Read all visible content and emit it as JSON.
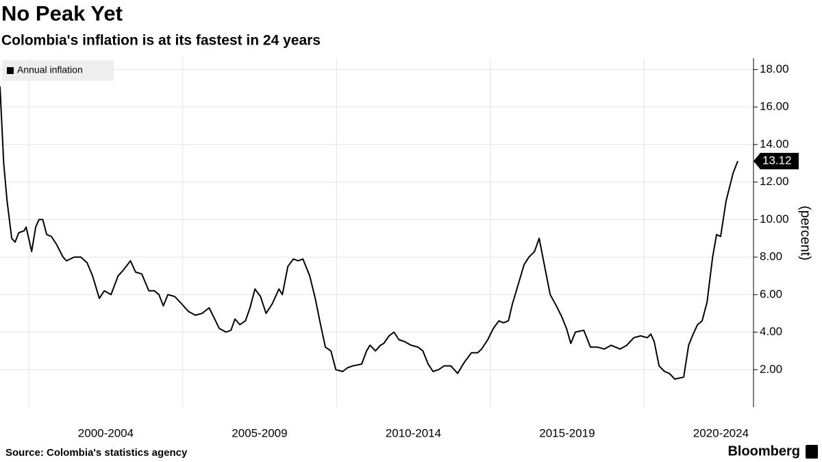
{
  "chart_data": {
    "type": "line",
    "title": "No Peak Yet",
    "subtitle": "Colombia's inflation is at its fastest in 24 years",
    "y_axis_label": "(percent)",
    "source": "Source: Colombia's statistics agency",
    "brand": "Bloomberg",
    "legend": "top-left",
    "grid": true,
    "x": [
      1999.06,
      1999.18,
      1999.29,
      1999.44,
      1999.55,
      1999.67,
      1999.84,
      1999.91,
      2000.09,
      2000.22,
      2000.33,
      2000.45,
      2000.58,
      2000.73,
      2000.89,
      2001.11,
      2001.22,
      2001.47,
      2001.69,
      2001.89,
      2002.07,
      2002.29,
      2002.45,
      2002.67,
      2002.9,
      2003.07,
      2003.3,
      2003.47,
      2003.67,
      2003.9,
      2004.08,
      2004.23,
      2004.37,
      2004.52,
      2004.74,
      2004.97,
      2005.19,
      2005.41,
      2005.63,
      2005.86,
      2006.01,
      2006.19,
      2006.41,
      2006.57,
      2006.7,
      2006.86,
      2007.04,
      2007.19,
      2007.35,
      2007.53,
      2007.71,
      2007.91,
      2008.13,
      2008.24,
      2008.42,
      2008.6,
      2008.75,
      2008.91,
      2009.13,
      2009.31,
      2009.47,
      2009.64,
      2009.82,
      2009.98,
      2010.2,
      2010.36,
      2010.53,
      2010.82,
      2010.98,
      2011.09,
      2011.27,
      2011.43,
      2011.54,
      2011.71,
      2011.87,
      2012.03,
      2012.21,
      2012.43,
      2012.65,
      2012.81,
      2012.98,
      2013.14,
      2013.32,
      2013.5,
      2013.72,
      2013.94,
      2014.16,
      2014.39,
      2014.59,
      2014.72,
      2014.92,
      2015.1,
      2015.28,
      2015.43,
      2015.59,
      2015.72,
      2015.92,
      2016.1,
      2016.26,
      2016.44,
      2016.59,
      2016.77,
      2016.95,
      2017.15,
      2017.33,
      2017.48,
      2017.62,
      2017.77,
      2018.04,
      2018.26,
      2018.49,
      2018.71,
      2018.93,
      2019.22,
      2019.44,
      2019.67,
      2019.89,
      2020.11,
      2020.22,
      2020.33,
      2020.49,
      2020.67,
      2020.82,
      2021.0,
      2021.29,
      2021.45,
      2021.6,
      2021.74,
      2021.89,
      2022.05,
      2022.23,
      2022.36,
      2022.49,
      2022.67,
      2022.9,
      2023.05
    ],
    "series": [
      {
        "name": "Annual inflation",
        "color": "#000000",
        "values": [
          17.1,
          13,
          11,
          9.0,
          8.8,
          9.3,
          9.4,
          9.6,
          8.3,
          9.6,
          10.0,
          10.0,
          9.2,
          9.1,
          8.7,
          8.0,
          7.8,
          8.0,
          8.0,
          7.7,
          7.0,
          5.8,
          6.2,
          6.0,
          7.0,
          7.3,
          7.8,
          7.2,
          7.1,
          6.2,
          6.2,
          6.0,
          5.4,
          6.0,
          5.9,
          5.5,
          5.1,
          4.9,
          5.0,
          5.3,
          4.8,
          4.2,
          4.0,
          4.1,
          4.7,
          4.4,
          4.6,
          5.3,
          6.3,
          5.9,
          5.0,
          5.5,
          6.3,
          6.0,
          7.5,
          7.9,
          7.8,
          7.9,
          7.0,
          5.8,
          4.5,
          3.2,
          3.0,
          2.0,
          1.9,
          2.1,
          2.2,
          2.3,
          3.0,
          3.3,
          3.0,
          3.3,
          3.4,
          3.8,
          4.0,
          3.6,
          3.5,
          3.3,
          3.2,
          3.0,
          2.3,
          1.9,
          2.0,
          2.2,
          2.2,
          1.8,
          2.4,
          2.9,
          2.9,
          3.1,
          3.6,
          4.2,
          4.6,
          4.5,
          4.6,
          5.5,
          6.6,
          7.6,
          8.0,
          8.3,
          9.0,
          7.5,
          6.0,
          5.4,
          4.8,
          4.2,
          3.4,
          4.0,
          4.1,
          3.2,
          3.2,
          3.1,
          3.3,
          3.1,
          3.3,
          3.7,
          3.8,
          3.7,
          3.9,
          3.5,
          2.2,
          1.9,
          1.8,
          1.5,
          1.6,
          3.3,
          3.9,
          4.4,
          4.6,
          5.6,
          8.0,
          9.2,
          9.1,
          11.0,
          12.5,
          13.12
        ]
      }
    ],
    "annotations": [
      {
        "x": 2023.05,
        "y": 13.12,
        "label": "13.12"
      }
    ],
    "xlim": [
      1999.06,
      2023.56
    ],
    "xgrid": [
      2000,
      2005,
      2010,
      2015,
      2020
    ],
    "xticks": [
      {
        "value": 2002.5,
        "label": "2000-2004"
      },
      {
        "value": 2007.5,
        "label": "2005-2009"
      },
      {
        "value": 2012.5,
        "label": "2010-2014"
      },
      {
        "value": 2017.5,
        "label": "2015-2019"
      },
      {
        "value": 2022.5,
        "label": "2020-2024"
      }
    ],
    "ylim": [
      0,
      18.6
    ],
    "yticks": [
      {
        "value": 2,
        "label": "2.00"
      },
      {
        "value": 4,
        "label": "4.00"
      },
      {
        "value": 6,
        "label": "6.00"
      },
      {
        "value": 8,
        "label": "8.00"
      },
      {
        "value": 10,
        "label": "10.00"
      },
      {
        "value": 12,
        "label": "12.00"
      },
      {
        "value": 14,
        "label": "14.00"
      },
      {
        "value": 16,
        "label": "16.00"
      },
      {
        "value": 18,
        "label": "18.00"
      }
    ]
  }
}
